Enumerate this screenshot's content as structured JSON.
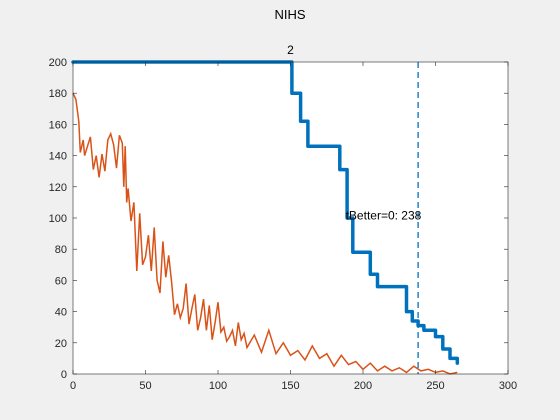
{
  "chart_data": {
    "type": "line",
    "title": "NIHS",
    "xlabel": "",
    "ylabel": "",
    "xlim": [
      0,
      300
    ],
    "ylim": [
      0,
      200
    ],
    "xticks": [
      0,
      50,
      100,
      150,
      200,
      250,
      300
    ],
    "yticks": [
      0,
      20,
      40,
      60,
      80,
      100,
      120,
      140,
      160,
      180,
      200
    ],
    "grid": false,
    "colors": {
      "series1": "#0072bd",
      "series2": "#d95319",
      "vline": "#0072bd",
      "axes_bg": "#ffffff",
      "figure_bg": "#f0f0f0"
    },
    "series": [
      {
        "style": "step",
        "color": "#0072bd",
        "x": [
          0,
          150,
          151,
          157,
          162,
          167,
          184,
          189,
          193,
          205,
          210,
          218,
          230,
          234,
          238,
          242,
          250,
          255,
          260,
          265
        ],
        "y": [
          200,
          200,
          180,
          162,
          146,
          146,
          131,
          100,
          78,
          64,
          56,
          56,
          40,
          34,
          31,
          28,
          24,
          16,
          10,
          7
        ]
      },
      {
        "style": "line",
        "color": "#d95319",
        "x": [
          0,
          2,
          4,
          5,
          7,
          8,
          10,
          12,
          14,
          16,
          18,
          20,
          22,
          24,
          26,
          28,
          30,
          32,
          34,
          35,
          36,
          37,
          38,
          40,
          42,
          44,
          46,
          48,
          50,
          52,
          54,
          56,
          58,
          60,
          62,
          64,
          66,
          68,
          70,
          72,
          74,
          76,
          78,
          80,
          82,
          84,
          86,
          88,
          90,
          92,
          94,
          96,
          98,
          100,
          102,
          104,
          106,
          108,
          110,
          112,
          114,
          116,
          118,
          120,
          125,
          130,
          135,
          140,
          145,
          150,
          155,
          160,
          165,
          170,
          175,
          180,
          185,
          190,
          195,
          200,
          205,
          210,
          215,
          220,
          225,
          230,
          235,
          240,
          245,
          250,
          255,
          260,
          265
        ],
        "y": [
          180,
          176,
          162,
          142,
          150,
          140,
          146,
          152,
          131,
          140,
          126,
          141,
          130,
          150,
          154,
          147,
          132,
          153,
          148,
          120,
          146,
          110,
          119,
          98,
          110,
          66,
          103,
          70,
          75,
          89,
          66,
          94,
          60,
          52,
          85,
          62,
          76,
          59,
          38,
          45,
          36,
          42,
          58,
          32,
          42,
          51,
          28,
          36,
          48,
          28,
          44,
          22,
          33,
          46,
          27,
          30,
          21,
          24,
          28,
          18,
          33,
          22,
          26,
          17,
          25,
          14,
          28,
          13,
          20,
          12,
          15,
          9,
          18,
          10,
          13,
          5,
          12,
          6,
          8,
          3,
          7,
          2,
          5,
          2,
          4,
          1,
          5,
          2,
          3,
          1,
          2,
          0,
          1
        ]
      }
    ],
    "vline": {
      "x": 238,
      "style": "dashed"
    },
    "annotations": [
      {
        "text": "2",
        "x": 150,
        "y": 205
      },
      {
        "text": "tBetter=0: 238",
        "x": 188,
        "y": 99
      }
    ]
  }
}
